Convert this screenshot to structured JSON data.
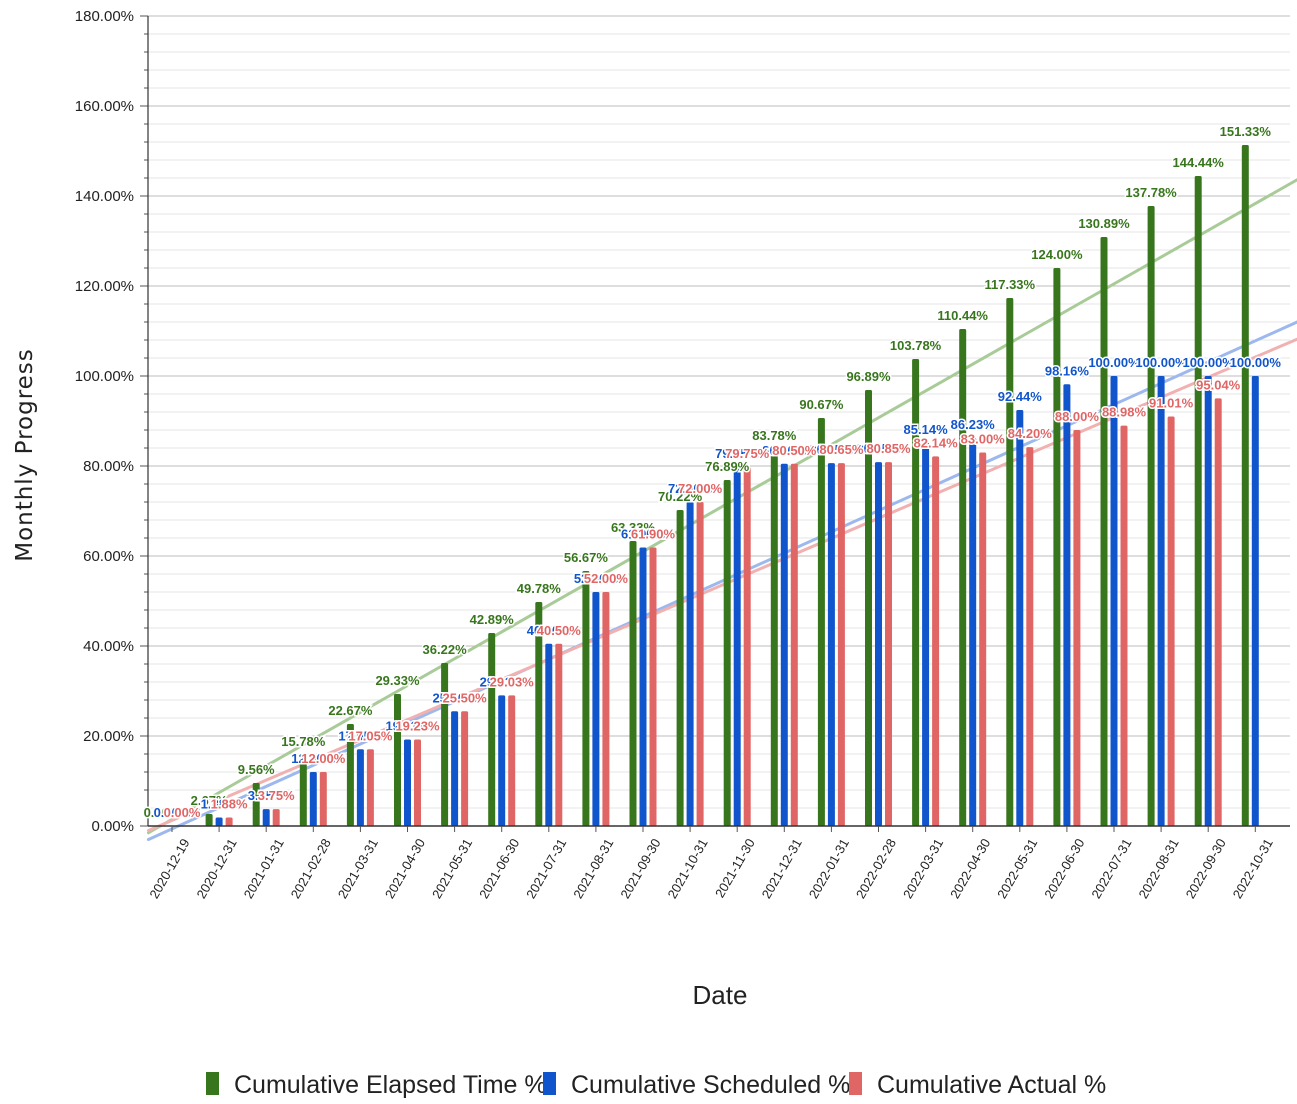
{
  "chart_data": {
    "type": "bar",
    "title": "",
    "xlabel": "Date",
    "ylabel": "Monthly Progress",
    "ylim": [
      0,
      180
    ],
    "y_tick_values": [
      0,
      20,
      40,
      60,
      80,
      100,
      120,
      140,
      160,
      180
    ],
    "y_tick_labels": [
      "0.00%",
      "20.00%",
      "40.00%",
      "60.00%",
      "80.00%",
      "100.00%",
      "120.00%",
      "140.00%",
      "160.00%",
      "180.00%"
    ],
    "grid": true,
    "legend_position": "bottom",
    "categories": [
      "2020-12-19",
      "2020-12-31",
      "2021-01-31",
      "2021-02-28",
      "2021-03-31",
      "2021-04-30",
      "2021-05-31",
      "2021-06-30",
      "2021-07-31",
      "2021-08-31",
      "2021-09-30",
      "2021-10-31",
      "2021-11-30",
      "2021-12-31",
      "2022-01-31",
      "2022-02-28",
      "2022-03-31",
      "2022-04-30",
      "2022-05-31",
      "2022-06-30",
      "2022-07-31",
      "2022-08-31",
      "2022-09-30",
      "2022-10-31"
    ],
    "series": [
      {
        "name": "Cumulative Elapsed Time %",
        "color": "#38761d",
        "label_color": "#38761d",
        "values": [
          0.0,
          2.67,
          9.56,
          15.78,
          22.67,
          29.33,
          36.22,
          42.89,
          49.78,
          56.67,
          63.33,
          70.22,
          76.89,
          83.78,
          90.67,
          96.89,
          103.78,
          110.44,
          117.33,
          124.0,
          130.89,
          137.78,
          144.44,
          151.33
        ],
        "labels": [
          "0.00%",
          "2.67%",
          "9.56%",
          "15.78%",
          "22.67%",
          "29.33%",
          "36.22%",
          "42.89%",
          "49.78%",
          "56.67%",
          "63.33%",
          "70.22%",
          "76.89%",
          "83.78%",
          "90.67%",
          "96.89%",
          "103.78%",
          "110.44%",
          "117.33%",
          "124.00%",
          "130.89%",
          "137.78%",
          "144.44%",
          "151.33%"
        ]
      },
      {
        "name": "Cumulative Scheduled %",
        "color": "#1155cc",
        "label_color": "#1155cc",
        "values": [
          0.0,
          1.88,
          3.75,
          12.0,
          17.05,
          19.23,
          25.5,
          29.03,
          40.5,
          52.0,
          61.9,
          72.0,
          79.75,
          80.5,
          80.65,
          80.85,
          85.14,
          86.23,
          92.44,
          98.16,
          100.0,
          100.0,
          100.0,
          100.0
        ],
        "labels": [
          "0.00%",
          "1.88%",
          "3.75%",
          "12.00%",
          "17.05%",
          "19.23%",
          "25.50%",
          "29.03%",
          "40.50%",
          "52.00%",
          "61.90%",
          "72.00%",
          "79.75%",
          "80.50%",
          "80.65%",
          "80.85%",
          "85.14%",
          "86.23%",
          "92.44%",
          "98.16%",
          "100.00%",
          "100.00%",
          "100.00%",
          "100.00%"
        ]
      },
      {
        "name": "Cumulative Actual %",
        "color": "#e06666",
        "label_color": "#e06666",
        "values": [
          0.0,
          1.88,
          3.75,
          12.0,
          17.05,
          19.23,
          25.5,
          29.03,
          40.5,
          52.0,
          61.9,
          72.0,
          79.75,
          80.5,
          80.65,
          80.85,
          82.14,
          83.0,
          84.2,
          88.0,
          88.98,
          91.01,
          95.04,
          null
        ],
        "labels": [
          "0.00%",
          "1.88%",
          "3.75%",
          "12.00%",
          "17.05%",
          "19.23%",
          "25.50%",
          "29.03%",
          "40.50%",
          "52.00%",
          "61.90%",
          "72.00%",
          "79.75%",
          "80.50%",
          "80.65%",
          "80.85%",
          "82.14%",
          "83.00%",
          "84.20%",
          "88.00%",
          "88.98%",
          "91.01%",
          "95.04%",
          ""
        ]
      }
    ],
    "trendlines": [
      {
        "series": "Cumulative Elapsed Time %",
        "color": "#a8cb98",
        "from": [
          -0.5,
          -1.5
        ],
        "to": [
          25.5,
          153.2
        ]
      },
      {
        "series": "Cumulative Scheduled %",
        "color": "#9db8ee",
        "from": [
          -0.5,
          -3.0
        ],
        "to": [
          25.5,
          119.6
        ]
      },
      {
        "series": "Cumulative Actual %",
        "color": "#f1b1b1",
        "from": [
          -0.5,
          -1.0
        ],
        "to": [
          25.5,
          115.4
        ]
      }
    ]
  }
}
